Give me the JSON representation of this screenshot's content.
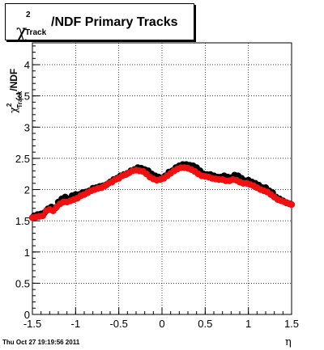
{
  "title": {
    "symbol": "χ",
    "sup": "2",
    "sub": "Track",
    "rest": "/NDF  Primary Tracks"
  },
  "footer": "Thu Oct 27 19:19:56 2011",
  "colors": {
    "series_black": "#000000",
    "series_red": "#ee1111",
    "grid": "#000000"
  },
  "chart_data": {
    "type": "scatter",
    "xlabel": "η",
    "ylabel": "χ²Track/NDF",
    "xlim": [
      -1.5,
      1.5
    ],
    "ylim": [
      0,
      4.35
    ],
    "xticks": [
      "-1.5",
      "-1",
      "-0.5",
      "0",
      "0.5",
      "1",
      "1.5"
    ],
    "yticks": [
      "0",
      "0.5",
      "1",
      "1.5",
      "2",
      "2.5",
      "3",
      "3.5",
      "4"
    ],
    "grid": true,
    "series": [
      {
        "color": "#000000",
        "x": [
          -1.48,
          -1.44,
          -1.4,
          -1.36,
          -1.32,
          -1.28,
          -1.24,
          -1.2,
          -1.16,
          -1.12,
          -1.08,
          -1.04,
          -1.0,
          -0.96,
          -0.92,
          -0.88,
          -0.84,
          -0.8,
          -0.76,
          -0.72,
          -0.68,
          -0.64,
          -0.6,
          -0.56,
          -0.52,
          -0.48,
          -0.44,
          -0.4,
          -0.36,
          -0.32,
          -0.28,
          -0.24,
          -0.2,
          -0.16,
          -0.12,
          -0.08,
          -0.04,
          0.0,
          0.04,
          0.08,
          0.12,
          0.16,
          0.2,
          0.24,
          0.28,
          0.32,
          0.36,
          0.4,
          0.44,
          0.48,
          0.52,
          0.56,
          0.6,
          0.64,
          0.68,
          0.72,
          0.76,
          0.8,
          0.84,
          0.88,
          0.92,
          0.96,
          1.0,
          1.04,
          1.08,
          1.12,
          1.16,
          1.2,
          1.24,
          1.28,
          1.32,
          1.36,
          1.4,
          1.44,
          1.48
        ],
        "y": [
          1.58,
          1.6,
          1.61,
          1.63,
          1.69,
          1.72,
          1.7,
          1.8,
          1.85,
          1.88,
          1.85,
          1.9,
          1.92,
          1.92,
          1.95,
          1.96,
          1.98,
          2.02,
          2.03,
          2.05,
          2.06,
          2.08,
          2.12,
          2.16,
          2.18,
          2.22,
          2.24,
          2.26,
          2.3,
          2.32,
          2.35,
          2.34,
          2.32,
          2.3,
          2.25,
          2.22,
          2.2,
          2.18,
          2.22,
          2.28,
          2.3,
          2.35,
          2.38,
          2.4,
          2.4,
          2.39,
          2.38,
          2.35,
          2.3,
          2.25,
          2.24,
          2.24,
          2.22,
          2.2,
          2.2,
          2.22,
          2.2,
          2.19,
          2.23,
          2.22,
          2.18,
          2.14,
          2.15,
          2.12,
          2.1,
          2.07,
          2.03,
          2.03,
          1.98,
          1.95,
          1.88,
          1.85,
          1.82,
          1.79,
          1.77
        ]
      },
      {
        "color": "#ee1111",
        "x": [
          -1.5,
          -1.46,
          -1.42,
          -1.38,
          -1.34,
          -1.3,
          -1.26,
          -1.22,
          -1.18,
          -1.14,
          -1.1,
          -1.06,
          -1.02,
          -0.98,
          -0.94,
          -0.9,
          -0.86,
          -0.82,
          -0.78,
          -0.74,
          -0.7,
          -0.66,
          -0.62,
          -0.58,
          -0.54,
          -0.5,
          -0.46,
          -0.42,
          -0.38,
          -0.34,
          -0.3,
          -0.26,
          -0.22,
          -0.18,
          -0.14,
          -0.1,
          -0.06,
          -0.02,
          0.02,
          0.06,
          0.1,
          0.14,
          0.18,
          0.22,
          0.26,
          0.3,
          0.34,
          0.38,
          0.42,
          0.46,
          0.5,
          0.54,
          0.58,
          0.62,
          0.66,
          0.7,
          0.74,
          0.78,
          0.82,
          0.86,
          0.9,
          0.94,
          0.98,
          1.02,
          1.06,
          1.1,
          1.14,
          1.18,
          1.22,
          1.26,
          1.3,
          1.34,
          1.38,
          1.42,
          1.46,
          1.5
        ],
        "y": [
          1.55,
          1.56,
          1.57,
          1.58,
          1.66,
          1.68,
          1.66,
          1.72,
          1.77,
          1.8,
          1.8,
          1.82,
          1.84,
          1.86,
          1.9,
          1.92,
          1.95,
          1.98,
          2.0,
          2.02,
          2.03,
          2.06,
          2.1,
          2.12,
          2.16,
          2.18,
          2.22,
          2.24,
          2.27,
          2.3,
          2.31,
          2.3,
          2.29,
          2.25,
          2.2,
          2.17,
          2.15,
          2.16,
          2.18,
          2.22,
          2.26,
          2.3,
          2.33,
          2.35,
          2.35,
          2.34,
          2.32,
          2.29,
          2.25,
          2.22,
          2.21,
          2.2,
          2.18,
          2.17,
          2.16,
          2.16,
          2.14,
          2.14,
          2.16,
          2.15,
          2.12,
          2.1,
          2.1,
          2.08,
          2.06,
          2.03,
          2.0,
          1.98,
          1.96,
          1.92,
          1.88,
          1.84,
          1.82,
          1.8,
          1.78,
          1.76
        ]
      }
    ]
  }
}
